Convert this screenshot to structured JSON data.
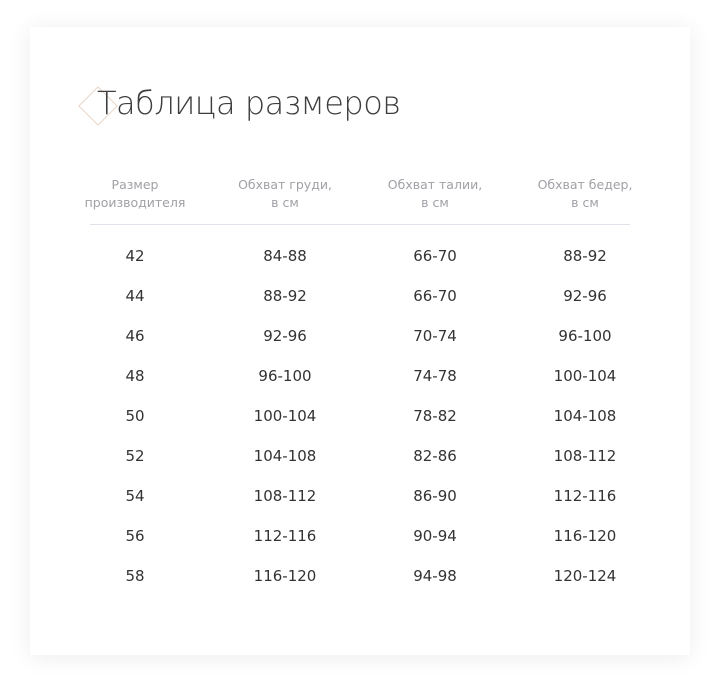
{
  "title": "Таблица размеров",
  "colors": {
    "accent_diamond": "#e8d5c8",
    "header_text": "#a0a0a6",
    "cell_text": "#333333"
  },
  "headers": [
    [
      "Размер",
      "производителя"
    ],
    [
      "Обхват груди,",
      "в см"
    ],
    [
      "Обхват талии,",
      "в см"
    ],
    [
      "Обхват бедер,",
      "в см"
    ]
  ],
  "rows": [
    [
      "42",
      "84-88",
      "66-70",
      "88-92"
    ],
    [
      "44",
      "88-92",
      "66-70",
      "92-96"
    ],
    [
      "46",
      "92-96",
      "70-74",
      "96-100"
    ],
    [
      "48",
      "96-100",
      "74-78",
      "100-104"
    ],
    [
      "50",
      "100-104",
      "78-82",
      "104-108"
    ],
    [
      "52",
      "104-108",
      "82-86",
      "108-112"
    ],
    [
      "54",
      "108-112",
      "86-90",
      "112-116"
    ],
    [
      "56",
      "112-116",
      "90-94",
      "116-120"
    ],
    [
      "58",
      "116-120",
      "94-98",
      "120-124"
    ]
  ]
}
